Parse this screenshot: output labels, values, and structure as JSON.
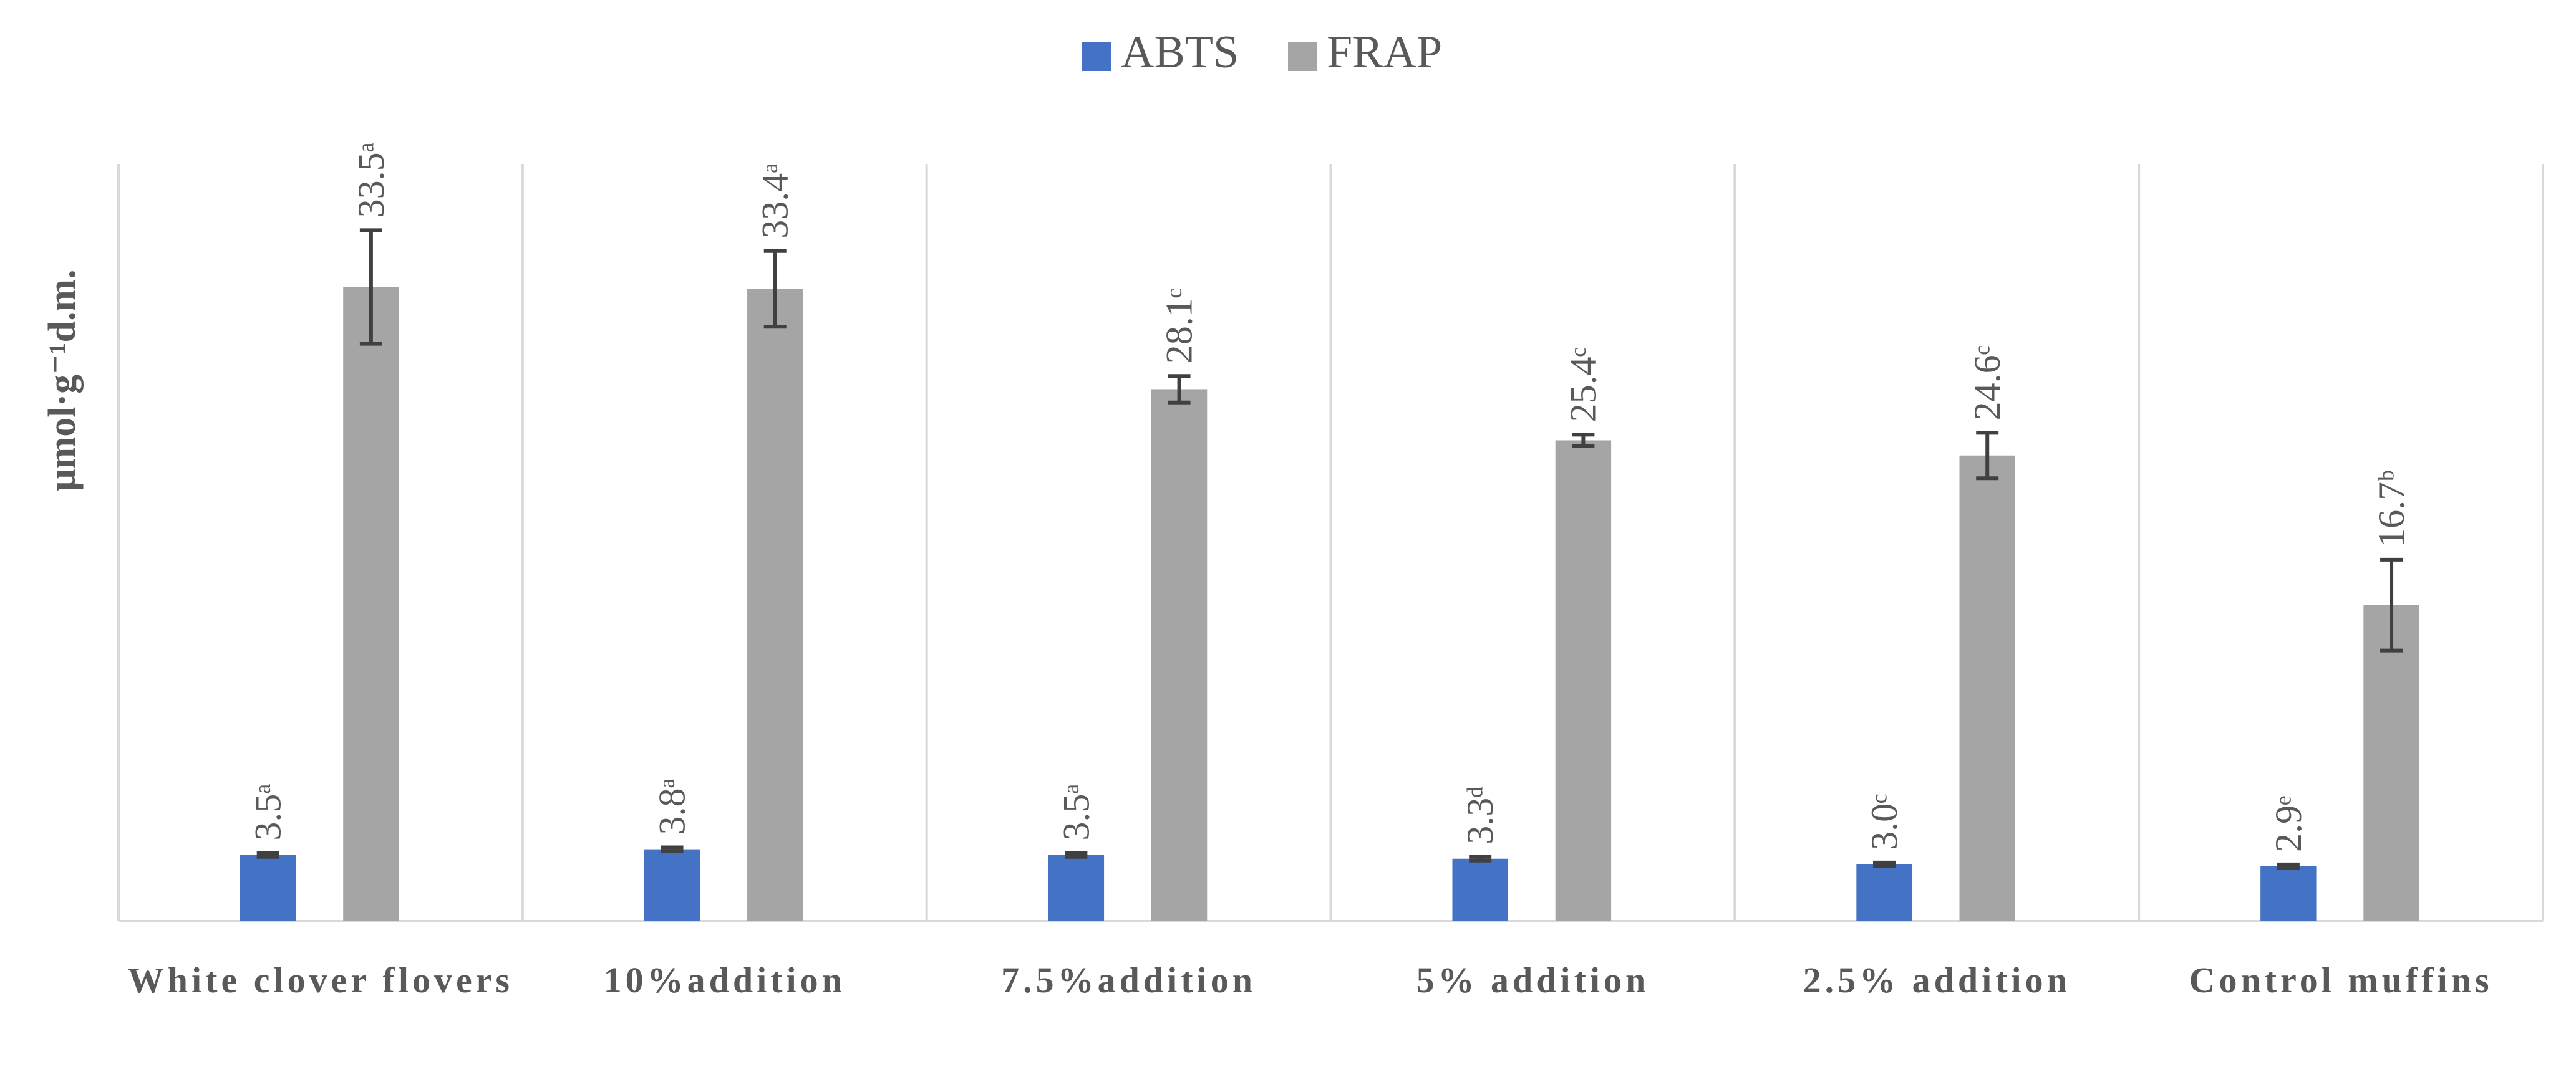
{
  "chart_data": {
    "type": "bar",
    "y_label": "μmol·g⁻¹d.m.",
    "categories": [
      "White clover flovers",
      "10%addition",
      "7.5%addition",
      "5% addition",
      "2.5% addition",
      "Control muffins"
    ],
    "series": [
      {
        "name": "ABTS",
        "color": "#4472c4",
        "values": [
          3.5,
          3.8,
          3.5,
          3.3,
          3.0,
          2.9
        ],
        "errors": [
          0.1,
          0.1,
          0.1,
          0.1,
          0.1,
          0.1
        ],
        "value_labels": [
          "3.5ᵃ",
          "3.8ᵃ",
          "3.5ᵃ",
          "3.3ᵈ",
          "3.0ᶜ",
          "2.9ᵉ"
        ]
      },
      {
        "name": "FRAP",
        "color": "#a5a5a5",
        "values": [
          33.5,
          33.4,
          28.1,
          25.4,
          24.6,
          16.7
        ],
        "errors": [
          3.0,
          2.0,
          0.7,
          0.3,
          1.2,
          2.4
        ],
        "value_labels": [
          "33.5ᵃ",
          "33.4ᵃ",
          "28.1ᶜ",
          "25.4ᶜ",
          "24.6ᶜ",
          "16.7ᵇ"
        ]
      }
    ],
    "ylim": [
      0,
      40
    ],
    "legend": "top"
  }
}
